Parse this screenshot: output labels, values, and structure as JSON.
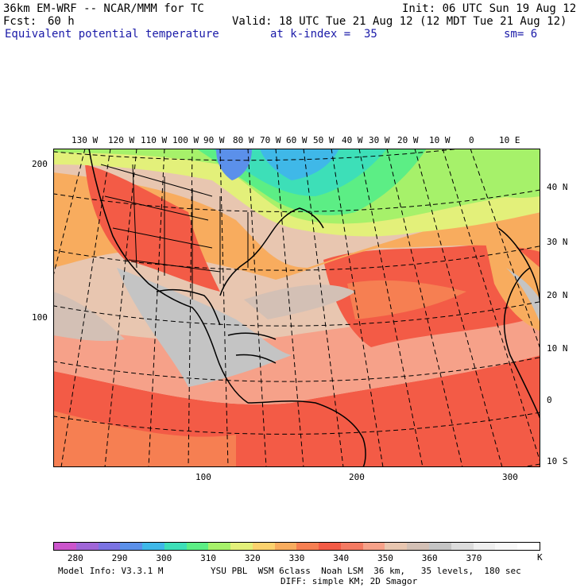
{
  "header": {
    "model_title": "36km EM-WRF -- NCAR/MMM for TC",
    "init": "Init: 06 UTC Sun 19 Aug 12",
    "fcst_label": "Fcst:",
    "fcst_value": "60 h",
    "valid": "Valid: 18 UTC Tue 21 Aug 12 (12 MDT Tue 21 Aug 12)",
    "field": "Equivalent potential temperature",
    "level": "at k-index =  35",
    "smoothing": "sm= 6"
  },
  "map": {
    "lon_labels": [
      "130 W",
      "120 W",
      "110 W",
      "100 W",
      "90 W",
      "80 W",
      "70 W",
      "60 W",
      "50 W",
      "40 W",
      "30 W",
      "20 W",
      "10 W",
      "0",
      "10 E"
    ],
    "lat_labels": [
      "40 N",
      "30 N",
      "20 N",
      "10 N",
      "0",
      "10 S"
    ],
    "grid_y_labels": [
      "200",
      "100"
    ],
    "grid_x_labels": [
      "100",
      "200",
      "300"
    ]
  },
  "colorbar": {
    "colors": [
      "#cc55cc",
      "#a066d8",
      "#7b73e3",
      "#5b90ea",
      "#3fb8e8",
      "#3ddfb8",
      "#5cee85",
      "#a6f16a",
      "#e3f07a",
      "#fbd26e",
      "#f8ac5e",
      "#f67f52",
      "#f35b46",
      "#f47a62",
      "#f6a189",
      "#e8c6b0",
      "#d3c0b5",
      "#c4c4c4",
      "#dcdcdc",
      "#efefef",
      "#f8f8f8",
      "#ffffff"
    ],
    "labels": [
      "280",
      "290",
      "300",
      "310",
      "320",
      "330",
      "340",
      "350",
      "360",
      "370"
    ],
    "unit": "K"
  },
  "footer": {
    "model_info": "Model Info: V3.3.1 M",
    "physics": "YSU PBL  WSM 6class  Noah LSM  36 km,   35 levels,  180 sec",
    "diffusion": "DIFF: simple KM; 2D Smagor"
  }
}
